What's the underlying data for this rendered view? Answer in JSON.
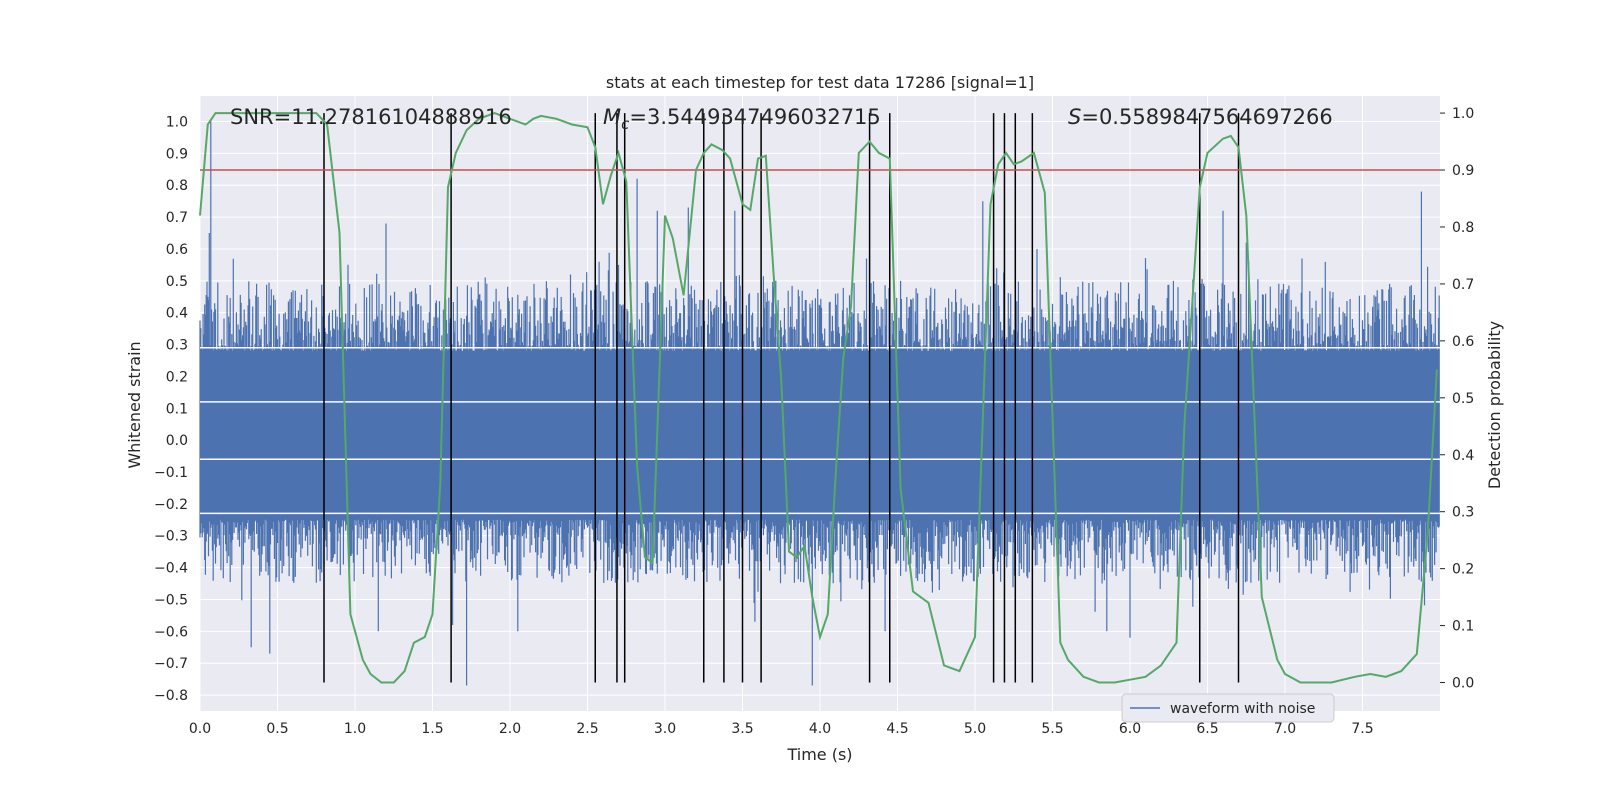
{
  "chart_data": {
    "type": "line",
    "title": "stats at each timestep for test data 17286 [signal=1]",
    "xlabel": "Time (s)",
    "ylabel": "Whitened strain",
    "y2label": "Detection probability",
    "xlim": [
      0,
      8
    ],
    "ylim": [
      -0.85,
      1.08
    ],
    "y2lim": [
      -0.05,
      1.03
    ],
    "xticks": [
      0.0,
      0.5,
      1.0,
      1.5,
      2.0,
      2.5,
      3.0,
      3.5,
      4.0,
      4.5,
      5.0,
      5.5,
      6.0,
      6.5,
      7.0,
      7.5
    ],
    "xtick_labels": [
      "0.0",
      "0.5",
      "1.0",
      "1.5",
      "2.0",
      "2.5",
      "3.0",
      "3.5",
      "4.0",
      "4.5",
      "5.0",
      "5.5",
      "6.0",
      "6.5",
      "7.0",
      "7.5"
    ],
    "yticks": [
      -0.8,
      -0.7,
      -0.6,
      -0.5,
      -0.4,
      -0.3,
      -0.2,
      -0.1,
      0.0,
      0.1,
      0.2,
      0.3,
      0.4,
      0.5,
      0.6,
      0.7,
      0.8,
      0.9,
      1.0
    ],
    "ytick_labels": [
      "−0.8",
      "−0.7",
      "−0.6",
      "−0.5",
      "−0.4",
      "−0.3",
      "−0.2",
      "−0.1",
      "0.0",
      "0.1",
      "0.2",
      "0.3",
      "0.4",
      "0.5",
      "0.6",
      "0.7",
      "0.8",
      "0.9",
      "1.0"
    ],
    "y2ticks": [
      0.0,
      0.1,
      0.2,
      0.3,
      0.4,
      0.5,
      0.6,
      0.7,
      0.8,
      0.9,
      1.0
    ],
    "y2tick_labels": [
      "0.0",
      "0.1",
      "0.2",
      "0.3",
      "0.4",
      "0.5",
      "0.6",
      "0.7",
      "0.8",
      "0.9",
      "1.0"
    ],
    "grid": true,
    "stats": {
      "snr": "SNR=11.27816104888916",
      "mc_symbol": "M",
      "mc_sub": "c",
      "mc_value": "=3.5449347496032715",
      "s_symbol": "S",
      "s_value": "=0.5589847564697266"
    },
    "legend": {
      "label": "waveform with noise",
      "placement": "lower-right"
    },
    "series": [
      {
        "name": "waveform with noise",
        "color": "#4c72b0",
        "axis": "left",
        "envelope": "dense noise, roughly ±0.3 to ±0.5 with spikes up to ~1.0 and down to ~−0.77",
        "spikes": [
          [
            0.07,
            1.0
          ],
          [
            0.06,
            0.65
          ],
          [
            0.33,
            -0.65
          ],
          [
            0.45,
            -0.67
          ],
          [
            0.8,
            0.6
          ],
          [
            1.2,
            0.68
          ],
          [
            1.15,
            -0.6
          ],
          [
            1.63,
            -0.58
          ],
          [
            1.72,
            -0.77
          ],
          [
            2.05,
            -0.6
          ],
          [
            2.7,
            0.55
          ],
          [
            2.82,
            0.82
          ],
          [
            2.95,
            0.72
          ],
          [
            3.15,
            0.73
          ],
          [
            3.45,
            0.72
          ],
          [
            3.95,
            -0.77
          ],
          [
            4.3,
            0.57
          ],
          [
            4.45,
            0.58
          ],
          [
            5.05,
            0.75
          ],
          [
            5.4,
            0.6
          ],
          [
            6.0,
            -0.62
          ],
          [
            6.45,
            0.65
          ],
          [
            6.6,
            0.72
          ],
          [
            6.75,
            0.62
          ],
          [
            7.88,
            0.78
          ],
          [
            5.85,
            -0.6
          ],
          [
            4.42,
            -0.6
          ],
          [
            3.58,
            -0.57
          ]
        ]
      },
      {
        "name": "",
        "color": "#55a868",
        "axis": "right",
        "x": [
          0.0,
          0.05,
          0.1,
          0.2,
          0.4,
          0.6,
          0.75,
          0.82,
          0.9,
          0.97,
          1.05,
          1.1,
          1.17,
          1.25,
          1.32,
          1.38,
          1.45,
          1.5,
          1.55,
          1.6,
          1.65,
          1.72,
          1.8,
          1.9,
          2.0,
          2.1,
          2.15,
          2.2,
          2.3,
          2.4,
          2.5,
          2.55,
          2.6,
          2.65,
          2.7,
          2.75,
          2.82,
          2.87,
          2.92,
          3.0,
          3.05,
          3.12,
          3.2,
          3.25,
          3.3,
          3.37,
          3.42,
          3.47,
          3.5,
          3.55,
          3.6,
          3.65,
          3.7,
          3.75,
          3.8,
          3.85,
          3.9,
          3.95,
          4.0,
          4.05,
          4.1,
          4.15,
          4.2,
          4.25,
          4.32,
          4.38,
          4.45,
          4.52,
          4.6,
          4.7,
          4.8,
          4.9,
          5.0,
          5.1,
          5.15,
          5.2,
          5.25,
          5.3,
          5.38,
          5.45,
          5.55,
          5.6,
          5.7,
          5.8,
          5.9,
          6.0,
          6.1,
          6.2,
          6.3,
          6.35,
          6.45,
          6.5,
          6.6,
          6.65,
          6.7,
          6.75,
          6.85,
          6.95,
          7.0,
          7.1,
          7.3,
          7.45,
          7.55,
          7.65,
          7.7,
          7.75,
          7.8,
          7.85,
          7.92,
          7.98
        ],
        "y": [
          0.82,
          0.98,
          1.0,
          1.0,
          1.0,
          1.0,
          1.0,
          0.98,
          0.79,
          0.12,
          0.04,
          0.015,
          0.0,
          0.0,
          0.02,
          0.07,
          0.08,
          0.12,
          0.35,
          0.87,
          0.93,
          0.97,
          0.99,
          1.0,
          0.99,
          0.98,
          0.99,
          0.995,
          0.99,
          0.98,
          0.975,
          0.94,
          0.84,
          0.89,
          0.93,
          0.88,
          0.38,
          0.22,
          0.21,
          0.82,
          0.78,
          0.68,
          0.9,
          0.93,
          0.945,
          0.935,
          0.92,
          0.87,
          0.84,
          0.83,
          0.92,
          0.925,
          0.72,
          0.53,
          0.23,
          0.22,
          0.24,
          0.15,
          0.08,
          0.12,
          0.36,
          0.57,
          0.66,
          0.93,
          0.95,
          0.93,
          0.92,
          0.34,
          0.16,
          0.14,
          0.03,
          0.02,
          0.08,
          0.84,
          0.91,
          0.93,
          0.91,
          0.915,
          0.93,
          0.86,
          0.07,
          0.04,
          0.01,
          0.0,
          0.0,
          0.005,
          0.01,
          0.03,
          0.07,
          0.45,
          0.87,
          0.93,
          0.955,
          0.96,
          0.94,
          0.82,
          0.15,
          0.04,
          0.015,
          0.0,
          0.0,
          0.01,
          0.015,
          0.01,
          0.015,
          0.02,
          0.035,
          0.05,
          0.26,
          0.55
        ]
      }
    ],
    "threshold": {
      "axis": "right",
      "value": 0.9,
      "color": "#c44e52"
    },
    "event_lines": {
      "color": "#000000",
      "axis": "right",
      "range": [
        0.0,
        1.0
      ],
      "x": [
        0.8,
        1.62,
        2.55,
        2.69,
        2.74,
        3.25,
        3.38,
        3.5,
        3.62,
        4.32,
        4.45,
        5.12,
        5.19,
        5.26,
        5.37,
        6.45,
        6.7
      ]
    },
    "horizontal_reference_lines": {
      "color": "#ffffff",
      "y": [
        0.29,
        0.12,
        -0.06,
        -0.23
      ]
    }
  }
}
